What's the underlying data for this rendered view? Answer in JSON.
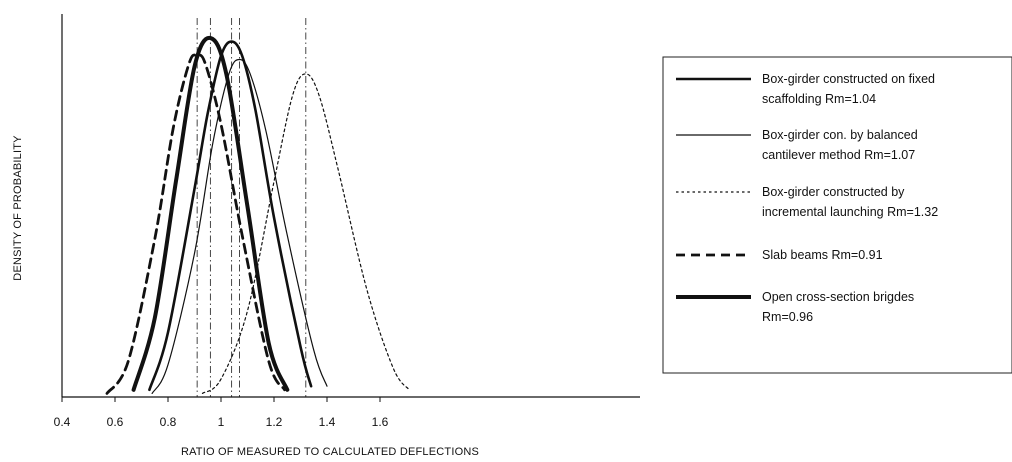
{
  "chart_data": {
    "type": "line",
    "title": "",
    "xlabel": "RATIO OF MEASURED TO CALCULATED DEFLECTIONS",
    "ylabel": "DENSITY OF PROBABILITY",
    "xlim": [
      0.4,
      1.7
    ],
    "ylim": [
      0,
      1.0
    ],
    "x_ticks": [
      "0.4",
      "0.6",
      "0.8",
      "1",
      "1.2",
      "1.4",
      "1.6"
    ],
    "grid": false,
    "legend_position": "right",
    "series": [
      {
        "name": "Box-girder constructed on fixed scaffolding Rm=1.04",
        "legend_lines": [
          "Box-girder constructed on fixed",
          "scaffolding  Rm=1.04"
        ],
        "style": "solid-medium",
        "mean": 1.04,
        "x": [
          0.73,
          0.8,
          0.9,
          0.95,
          1.0,
          1.04,
          1.08,
          1.13,
          1.2,
          1.3,
          1.34
        ],
        "y": [
          0.02,
          0.18,
          0.58,
          0.79,
          0.95,
          0.99,
          0.95,
          0.8,
          0.5,
          0.14,
          0.03
        ]
      },
      {
        "name": "Box-girder con. by balanced cantilever method Rm=1.07",
        "legend_lines": [
          "Box-girder con. by balanced",
          "cantilever method  Rm=1.07"
        ],
        "style": "solid-thin",
        "mean": 1.07,
        "x": [
          0.74,
          0.8,
          0.9,
          0.97,
          1.03,
          1.07,
          1.11,
          1.17,
          1.25,
          1.35,
          1.4
        ],
        "y": [
          0.01,
          0.09,
          0.4,
          0.71,
          0.9,
          0.94,
          0.9,
          0.74,
          0.45,
          0.13,
          0.03
        ]
      },
      {
        "name": "Box-girder constructed by incremental launching Rm=1.32",
        "legend_lines": [
          "Box-girder constructed by",
          "incremental launching  Rm=1.32"
        ],
        "style": "dotted",
        "mean": 1.32,
        "x": [
          0.93,
          1.0,
          1.1,
          1.2,
          1.27,
          1.32,
          1.37,
          1.44,
          1.55,
          1.65,
          1.71
        ],
        "y": [
          0.01,
          0.05,
          0.24,
          0.6,
          0.84,
          0.9,
          0.84,
          0.64,
          0.3,
          0.08,
          0.02
        ]
      },
      {
        "name": "Slab beams Rm=0.91",
        "legend_lines": [
          "Slab beams  Rm=0.91"
        ],
        "style": "dashed",
        "mean": 0.91,
        "x": [
          0.57,
          0.65,
          0.75,
          0.82,
          0.88,
          0.91,
          0.94,
          1.0,
          1.08,
          1.18,
          1.24
        ],
        "y": [
          0.01,
          0.1,
          0.44,
          0.75,
          0.93,
          0.95,
          0.93,
          0.76,
          0.45,
          0.1,
          0.02
        ]
      },
      {
        "name": "Open cross-section brigdes Rm=0.96",
        "legend_lines": [
          "Open cross-section brigdes",
          "Rm=0.96"
        ],
        "style": "solid-thick",
        "mean": 0.96,
        "x": [
          0.67,
          0.75,
          0.83,
          0.9,
          0.96,
          1.02,
          1.1,
          1.18,
          1.25
        ],
        "y": [
          0.02,
          0.22,
          0.6,
          0.92,
          1.0,
          0.9,
          0.53,
          0.15,
          0.02
        ]
      }
    ]
  }
}
